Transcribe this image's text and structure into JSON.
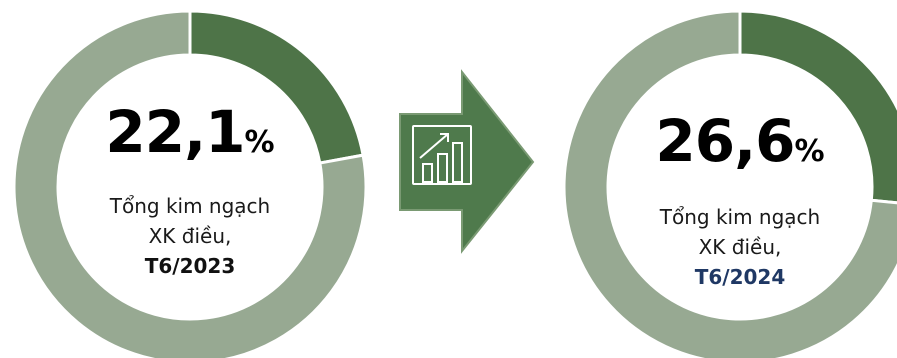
{
  "chart_data": [
    {
      "type": "pie",
      "style": "donut",
      "values": [
        22.1,
        77.9
      ],
      "highlight_value": "22,1",
      "unit": "%",
      "caption_lines": [
        "Tổng kim ngạch",
        "XK điều,"
      ],
      "period": "T6/2023",
      "period_color": "#111111"
    },
    {
      "type": "pie",
      "style": "donut",
      "values": [
        26.6,
        73.4
      ],
      "highlight_value": "26,6",
      "unit": "%",
      "caption_lines": [
        "Tổng kim ngạch",
        "XK điều,"
      ],
      "period": "T6/2024",
      "period_color": "#1f3864"
    }
  ],
  "colors": {
    "share": "#4e7448",
    "rest": "#97a992",
    "arrow": "#4f7a4c",
    "arrow_border": "#7a9a73"
  },
  "arrow_icon": "chart-growth-icon"
}
